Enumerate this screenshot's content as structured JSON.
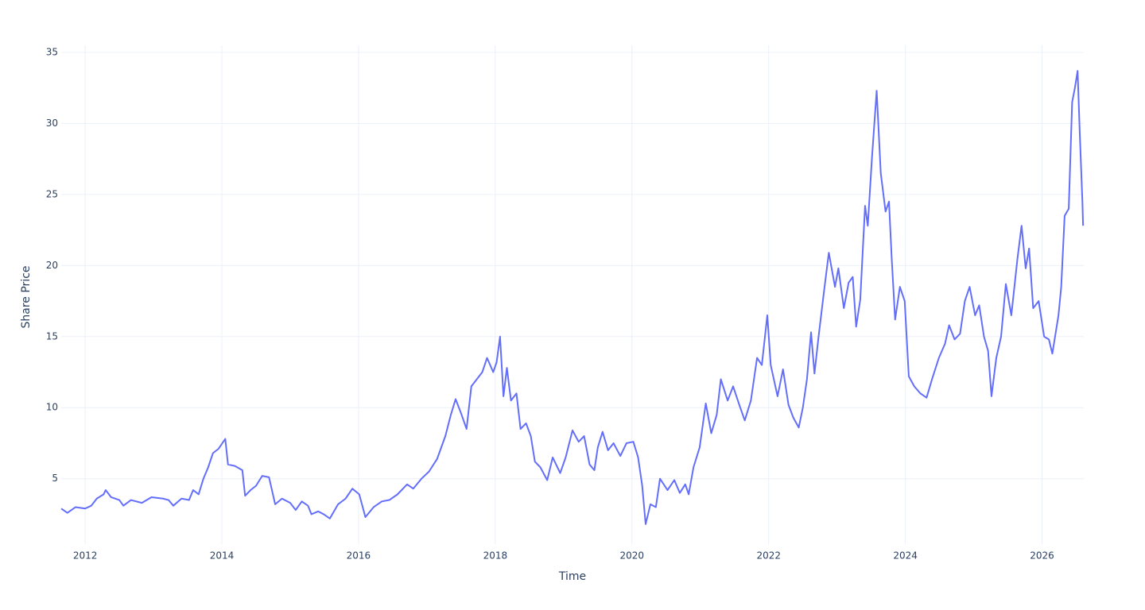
{
  "chart_data": {
    "type": "line",
    "xlabel": "Time",
    "ylabel": "Share Price",
    "color": "#636efa",
    "grid": true,
    "xlim": [
      2011.65,
      2026.61
    ],
    "ylim": [
      0.4,
      35.5
    ],
    "xticks": [
      2012,
      2014,
      2016,
      2018,
      2020,
      2022,
      2024,
      2026
    ],
    "yticks": [
      5,
      10,
      15,
      20,
      25,
      30,
      35
    ],
    "x": [
      2011.65,
      2011.74,
      2011.86,
      2012.0,
      2012.09,
      2012.17,
      2012.27,
      2012.3,
      2012.38,
      2012.5,
      2012.56,
      2012.67,
      2012.83,
      2012.97,
      2013.14,
      2013.22,
      2013.29,
      2013.41,
      2013.52,
      2013.58,
      2013.66,
      2013.73,
      2013.8,
      2013.87,
      2013.95,
      2014.05,
      2014.09,
      2014.19,
      2014.3,
      2014.34,
      2014.42,
      2014.5,
      2014.59,
      2014.69,
      2014.78,
      2014.88,
      2015.0,
      2015.08,
      2015.17,
      2015.26,
      2015.31,
      2015.41,
      2015.49,
      2015.58,
      2015.7,
      2015.81,
      2015.91,
      2016.01,
      2016.1,
      2016.22,
      2016.34,
      2016.45,
      2016.57,
      2016.71,
      2016.8,
      2016.92,
      2017.03,
      2017.15,
      2017.27,
      2017.35,
      2017.42,
      2017.5,
      2017.58,
      2017.65,
      2017.73,
      2017.81,
      2017.88,
      2017.97,
      2018.02,
      2018.07,
      2018.12,
      2018.17,
      2018.23,
      2018.31,
      2018.37,
      2018.45,
      2018.52,
      2018.58,
      2018.66,
      2018.76,
      2018.84,
      2018.95,
      2019.03,
      2019.13,
      2019.22,
      2019.3,
      2019.38,
      2019.45,
      2019.5,
      2019.57,
      2019.65,
      2019.73,
      2019.83,
      2019.92,
      2020.02,
      2020.09,
      2020.15,
      2020.2,
      2020.27,
      2020.35,
      2020.41,
      2020.52,
      2020.62,
      2020.7,
      2020.78,
      2020.83,
      2020.9,
      2020.99,
      2021.08,
      2021.16,
      2021.24,
      2021.3,
      2021.4,
      2021.48,
      2021.57,
      2021.65,
      2021.74,
      2021.83,
      2021.9,
      2021.98,
      2022.03,
      2022.13,
      2022.21,
      2022.29,
      2022.36,
      2022.44,
      2022.5,
      2022.56,
      2022.62,
      2022.67,
      2022.73,
      2022.81,
      2022.88,
      2022.97,
      2023.02,
      2023.1,
      2023.17,
      2023.23,
      2023.28,
      2023.34,
      2023.41,
      2023.45,
      2023.51,
      2023.58,
      2023.64,
      2023.71,
      2023.76,
      2023.8,
      2023.85,
      2023.92,
      2023.99,
      2024.05,
      2024.13,
      2024.22,
      2024.31,
      2024.39,
      2024.49,
      2024.58,
      2024.64,
      2024.72,
      2024.8,
      2024.87,
      2024.94,
      2025.02,
      2025.08,
      2025.15,
      2025.21,
      2025.26,
      2025.33,
      2025.4,
      2025.47,
      2025.55,
      2025.64,
      2025.7,
      2025.76,
      2025.81,
      2025.87,
      2025.95,
      2026.03,
      2026.1,
      2026.15,
      2026.24,
      2026.28,
      2026.33,
      2026.39,
      2026.44,
      2026.48,
      2026.52,
      2026.55,
      2026.59,
      2026.6
    ],
    "values": [
      2.9,
      2.6,
      3.0,
      2.9,
      3.1,
      3.6,
      3.9,
      4.2,
      3.7,
      3.5,
      3.1,
      3.5,
      3.3,
      3.7,
      3.6,
      3.5,
      3.1,
      3.6,
      3.5,
      4.2,
      3.9,
      5.0,
      5.8,
      6.8,
      7.1,
      7.8,
      6.0,
      5.9,
      5.6,
      3.8,
      4.2,
      4.5,
      5.2,
      5.1,
      3.2,
      3.6,
      3.3,
      2.8,
      3.4,
      3.1,
      2.5,
      2.7,
      2.5,
      2.2,
      3.2,
      3.6,
      4.3,
      3.9,
      2.3,
      3.0,
      3.4,
      3.5,
      3.9,
      4.6,
      4.3,
      5.0,
      5.5,
      6.4,
      8.0,
      9.5,
      10.6,
      9.6,
      8.5,
      11.5,
      12.0,
      12.5,
      13.5,
      12.5,
      13.2,
      15.0,
      10.8,
      12.8,
      10.5,
      11.0,
      8.5,
      8.9,
      8.0,
      6.2,
      5.8,
      4.9,
      6.5,
      5.4,
      6.5,
      8.4,
      7.6,
      8.0,
      6.0,
      5.6,
      7.2,
      8.3,
      7.0,
      7.5,
      6.6,
      7.5,
      7.6,
      6.5,
      4.5,
      1.8,
      3.2,
      3.0,
      5.0,
      4.2,
      4.9,
      4.0,
      4.6,
      3.9,
      5.8,
      7.2,
      10.3,
      8.2,
      9.5,
      12.0,
      10.5,
      11.5,
      10.2,
      9.1,
      10.5,
      13.5,
      13.0,
      16.5,
      13.0,
      10.8,
      12.7,
      10.2,
      9.3,
      8.6,
      10.0,
      12.0,
      15.3,
      12.4,
      15.0,
      18.2,
      20.9,
      18.5,
      19.8,
      17.0,
      18.8,
      19.2,
      15.7,
      17.6,
      24.2,
      22.8,
      27.5,
      32.3,
      26.5,
      23.8,
      24.5,
      20.5,
      16.2,
      18.5,
      17.5,
      12.2,
      11.5,
      11.0,
      10.7,
      12.0,
      13.5,
      14.5,
      15.8,
      14.8,
      15.2,
      17.5,
      18.5,
      16.5,
      17.2,
      15.0,
      14.0,
      10.8,
      13.5,
      15.0,
      18.7,
      16.5,
      20.5,
      22.8,
      19.8,
      21.2,
      17.0,
      17.5,
      15.0,
      14.8,
      13.8,
      16.5,
      18.5,
      23.5,
      24.0,
      31.5,
      32.5,
      33.7,
      29.5,
      24.5,
      22.8
    ]
  }
}
